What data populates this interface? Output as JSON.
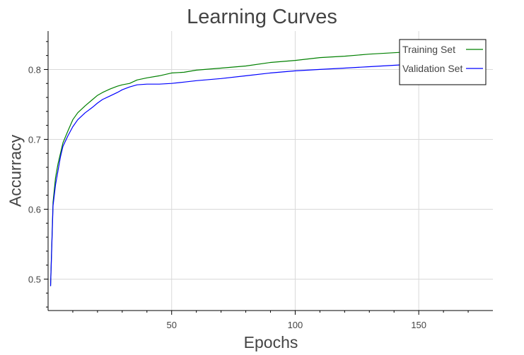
{
  "chart_data": {
    "type": "line",
    "title": "Learning Curves",
    "xlabel": "Epochs",
    "ylabel": "Accurracy",
    "xlim": [
      0,
      180
    ],
    "ylim": [
      0.455,
      0.855
    ],
    "x_ticks": [
      50,
      100,
      150
    ],
    "y_ticks": [
      0.5,
      0.6,
      0.7,
      0.8
    ],
    "grid": true,
    "legend_position": "top-right",
    "series": [
      {
        "name": "Training Set",
        "color": "#008000",
        "x": [
          1,
          2,
          3,
          4,
          5,
          6,
          8,
          10,
          12,
          15,
          18,
          20,
          22,
          25,
          28,
          30,
          33,
          36,
          40,
          45,
          50,
          55,
          60,
          70,
          80,
          90,
          100,
          110,
          120,
          130,
          140,
          145
        ],
        "values": [
          0.49,
          0.61,
          0.645,
          0.665,
          0.68,
          0.695,
          0.712,
          0.728,
          0.738,
          0.748,
          0.757,
          0.763,
          0.767,
          0.772,
          0.776,
          0.778,
          0.78,
          0.785,
          0.788,
          0.791,
          0.795,
          0.796,
          0.799,
          0.802,
          0.805,
          0.81,
          0.813,
          0.817,
          0.819,
          0.822,
          0.824,
          0.825
        ]
      },
      {
        "name": "Validation Set",
        "color": "#0000ff",
        "x": [
          1,
          2,
          3,
          4,
          5,
          6,
          8,
          10,
          12,
          15,
          18,
          20,
          22,
          25,
          28,
          30,
          33,
          36,
          40,
          45,
          50,
          55,
          60,
          70,
          80,
          90,
          100,
          110,
          120,
          130,
          140,
          145
        ],
        "values": [
          0.49,
          0.605,
          0.635,
          0.655,
          0.675,
          0.69,
          0.705,
          0.718,
          0.728,
          0.738,
          0.746,
          0.752,
          0.757,
          0.762,
          0.767,
          0.771,
          0.775,
          0.778,
          0.779,
          0.779,
          0.78,
          0.782,
          0.784,
          0.787,
          0.791,
          0.795,
          0.798,
          0.8,
          0.802,
          0.804,
          0.806,
          0.807
        ]
      }
    ]
  }
}
